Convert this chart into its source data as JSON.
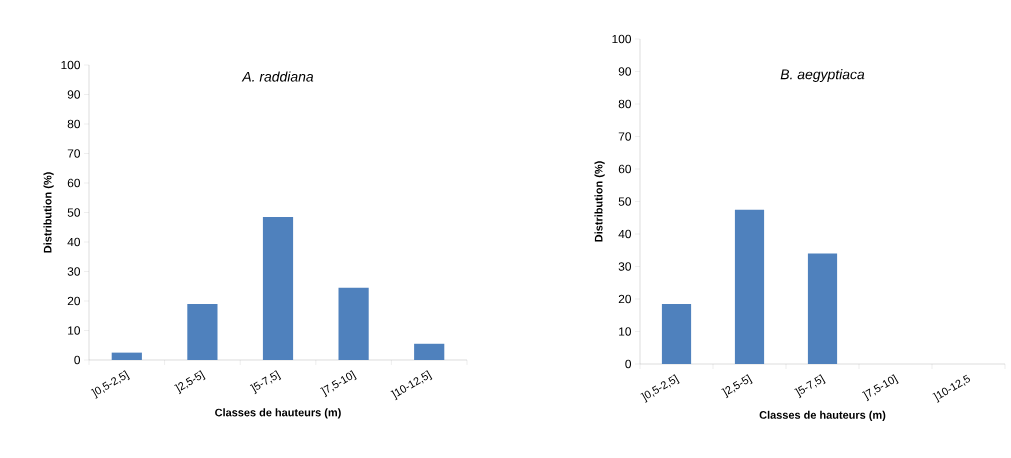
{
  "chart_data": [
    {
      "type": "bar",
      "title": "A. raddiana",
      "xlabel": "Classes de hauteurs (m)",
      "ylabel": "Distribution (%)",
      "categories": [
        "]0,5-2,5]",
        "]2,5-5]",
        "]5-7,5]",
        "]7,5-10]",
        "]10-12,5]"
      ],
      "values": [
        2.5,
        19,
        48.5,
        24.5,
        5.5
      ],
      "color": "#4f81bd",
      "ylim": [
        0,
        100
      ],
      "yticks": [
        0,
        10,
        20,
        30,
        40,
        50,
        60,
        70,
        80,
        90,
        100
      ],
      "grid": false
    },
    {
      "type": "bar",
      "title": "B. aegyptiaca",
      "xlabel": "Classes de hauteurs (m)",
      "ylabel": "Distribution (%)",
      "categories": [
        "]0,5-2,5]",
        "]2,5-5]",
        "]5-7,5]",
        "]7,5-10]",
        "]10-12,5"
      ],
      "values": [
        18.5,
        47.5,
        34,
        0,
        0
      ],
      "color": "#4f81bd",
      "ylim": [
        0,
        100
      ],
      "yticks": [
        0,
        10,
        20,
        30,
        40,
        50,
        60,
        70,
        80,
        90,
        100
      ],
      "grid": false
    }
  ]
}
